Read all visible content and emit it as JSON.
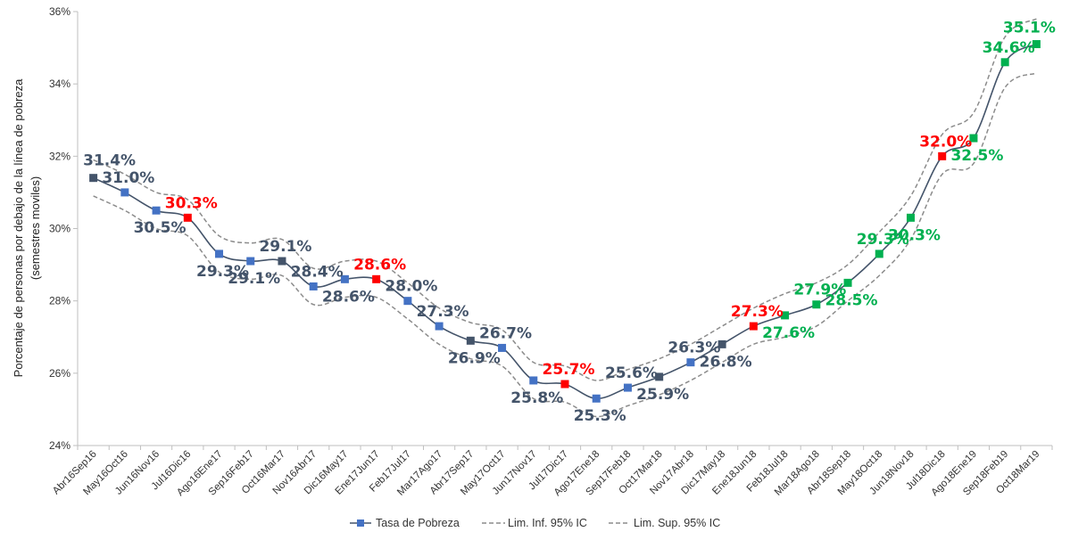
{
  "chart_data": {
    "type": "line",
    "ylabel_line1": "Porcentaje de personas por debajo de la línea de pobreza",
    "ylabel_line2": "(semestres moviles)",
    "ylim": [
      24,
      36
    ],
    "yticks": [
      "24%",
      "26%",
      "28%",
      "30%",
      "32%",
      "34%",
      "36%"
    ],
    "grid": false,
    "legend_position": "bottom",
    "categories": [
      "Abr16Sep16",
      "May16Oct16",
      "Jun16Nov16",
      "Jul16Dic16",
      "Ago16Ene17",
      "Sep16Feb17",
      "Oct16Mar17",
      "Nov16Abr17",
      "Dic16May17",
      "Ene17Jun17",
      "Feb17Jul17",
      "Mar17Ago17",
      "Abr17Sep17",
      "May17Oct17",
      "Jun17Nov17",
      "Jul17Dic17",
      "Ago17Ene18",
      "Sep17Feb18",
      "Oct17Mar18",
      "Nov17Abr18",
      "Dic17May18",
      "Ene18Jun18",
      "Feb18Jul18",
      "Mar18Ago18",
      "Abr18Sep18",
      "May18Oct18",
      "Jun18Nov18",
      "Jul18Dic18",
      "Ago18Ene19",
      "Sep18Feb19",
      "Oct18Mar19"
    ],
    "series": [
      {
        "name": "Tasa de Pobreza",
        "values": [
          31.4,
          31.0,
          30.5,
          30.3,
          29.3,
          29.1,
          29.1,
          28.4,
          28.6,
          28.6,
          28.0,
          27.3,
          26.9,
          26.7,
          25.8,
          25.7,
          25.3,
          25.6,
          25.9,
          26.3,
          26.8,
          27.3,
          27.6,
          27.9,
          28.5,
          29.3,
          30.3,
          32.0,
          32.5,
          34.6,
          35.1
        ],
        "point_colors": [
          "#44546A",
          "#4472C4",
          "#4472C4",
          "#FF0000",
          "#4472C4",
          "#4472C4",
          "#44546A",
          "#4472C4",
          "#4472C4",
          "#FF0000",
          "#4472C4",
          "#4472C4",
          "#44546A",
          "#4472C4",
          "#4472C4",
          "#FF0000",
          "#4472C4",
          "#4472C4",
          "#44546A",
          "#4472C4",
          "#44546A",
          "#FF0000",
          "#00B050",
          "#00B050",
          "#00B050",
          "#00B050",
          "#00B050",
          "#FF0000",
          "#00B050",
          "#00B050",
          "#00B050"
        ],
        "label_colors": [
          "#44546A",
          "#44546A",
          "#44546A",
          "#FF0000",
          "#44546A",
          "#44546A",
          "#44546A",
          "#44546A",
          "#44546A",
          "#FF0000",
          "#44546A",
          "#44546A",
          "#44546A",
          "#44546A",
          "#44546A",
          "#FF0000",
          "#44546A",
          "#44546A",
          "#44546A",
          "#44546A",
          "#44546A",
          "#FF0000",
          "#00B050",
          "#00B050",
          "#00B050",
          "#00B050",
          "#00B050",
          "#FF0000",
          "#00B050",
          "#00B050",
          "#00B050"
        ],
        "labels": [
          "31.4%",
          "31.0%",
          "30.5%",
          "30.3%",
          "29.3%",
          "29.1%",
          "29.1%",
          "28.4%",
          "28.6%",
          "28.6%",
          "28.0%",
          "27.3%",
          "26.9%",
          "26.7%",
          "25.8%",
          "25.7%",
          "25.3%",
          "25.6%",
          "25.9%",
          "26.3%",
          "26.8%",
          "27.3%",
          "27.6%",
          "27.9%",
          "28.5%",
          "29.3%",
          "30.3%",
          "32.0%",
          "32.5%",
          "34.6%",
          "35.1%"
        ],
        "label_positions": [
          "above",
          "above",
          "below",
          "above",
          "below",
          "below",
          "above",
          "above",
          "below",
          "above",
          "above",
          "above",
          "below",
          "above",
          "below",
          "above",
          "below",
          "above",
          "below",
          "above",
          "below",
          "above",
          "below",
          "above",
          "below",
          "above",
          "below",
          "above",
          "below",
          "above",
          "above"
        ]
      },
      {
        "name": "Lim. Inf. 95% IC",
        "values": [
          30.9,
          30.5,
          30.0,
          29.8,
          28.8,
          28.6,
          28.7,
          27.9,
          28.1,
          28.1,
          27.5,
          26.8,
          26.4,
          26.2,
          25.3,
          25.2,
          24.8,
          25.1,
          25.4,
          25.8,
          26.3,
          26.8,
          27.0,
          27.3,
          28.0,
          28.7,
          29.7,
          31.5,
          31.8,
          33.9,
          34.3
        ]
      },
      {
        "name": "Lim. Sup. 95% IC",
        "values": [
          31.9,
          31.5,
          31.0,
          30.8,
          29.8,
          29.6,
          29.7,
          28.9,
          29.1,
          29.1,
          28.5,
          27.8,
          27.4,
          27.2,
          26.3,
          26.2,
          25.8,
          26.1,
          26.4,
          26.8,
          27.3,
          27.8,
          28.2,
          28.5,
          29.0,
          29.9,
          30.9,
          32.6,
          33.2,
          35.3,
          35.8
        ]
      }
    ],
    "colors": {
      "line": "#44546A",
      "ci_line": "#8C8C8C",
      "marker_legend": "#4472C4",
      "axis": "#BFBFBF"
    }
  },
  "legend": {
    "items": [
      {
        "label": "Tasa de Pobreza"
      },
      {
        "label": "Lim. Inf. 95% IC"
      },
      {
        "label": "Lim. Sup. 95% IC"
      }
    ]
  }
}
